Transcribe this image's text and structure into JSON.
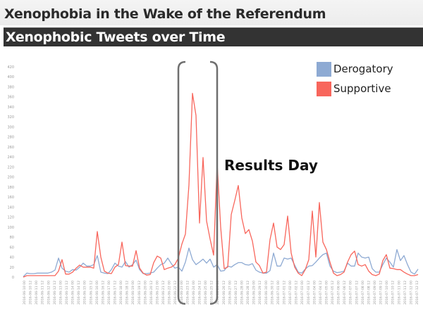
{
  "slide": {
    "title": "Xenophobia in the Wake of the Referendum",
    "subtitle": "Xenophobic Tweets over Time"
  },
  "chart_data": {
    "type": "line",
    "title": "",
    "xlabel": "",
    "ylabel": "",
    "ylim": [
      0,
      420
    ],
    "yticks": [
      0,
      20,
      40,
      60,
      80,
      100,
      120,
      140,
      160,
      180,
      200,
      220,
      240,
      260,
      280,
      300,
      320,
      340,
      360,
      380,
      400,
      420
    ],
    "grid": false,
    "legend_position": "top-right",
    "x_tick_labels": [
      "2016-06-10 00",
      "2016-06-10 12",
      "2016-06-11 00",
      "2016-06-11 12",
      "2016-06-12 00",
      "2016-06-12 12",
      "2016-06-13 00",
      "2016-06-13 12",
      "2016-06-14 00",
      "2016-06-14 12",
      "2016-06-15 00",
      "2016-06-15 12",
      "2016-06-16 00",
      "2016-06-16 12",
      "2016-06-17 00",
      "2016-06-17 12",
      "2016-06-18 00",
      "2016-06-18 12",
      "2016-06-19 00",
      "2016-06-19 12",
      "2016-06-20 00",
      "2016-06-20 12",
      "2016-06-21 00",
      "2016-06-21 12",
      "2016-06-22 00",
      "2016-06-22 12",
      "2016-06-23 00",
      "2016-06-23 12",
      "2016-06-24 00",
      "2016-06-24 12",
      "2016-06-25 00",
      "2016-06-25 12",
      "2016-06-26 00",
      "2016-06-26 12",
      "2016-06-27 00",
      "2016-06-27 12",
      "2016-06-28 00",
      "2016-06-28 12",
      "2016-06-29 00",
      "2016-06-29 12",
      "2016-06-30 00",
      "2016-06-30 12",
      "2016-07-01 00",
      "2016-07-01 12",
      "2016-07-02 00",
      "2016-07-02 12",
      "2016-07-03 00",
      "2016-07-03 12",
      "2016-07-04 00",
      "2016-07-04 12",
      "2016-07-05 00",
      "2016-07-05 12",
      "2016-07-06 00",
      "2016-07-06 12",
      "2016-07-07 00",
      "2016-07-07 12",
      "2016-07-08 00",
      "2016-07-08 12",
      "2016-07-09 00",
      "2016-07-09 12",
      "2016-07-10 00",
      "2016-07-10 12",
      "2016-07-11 00",
      "2016-07-11 12",
      "2016-07-12 00",
      "2016-07-12 12"
    ],
    "series": [
      {
        "name": "Derogatory",
        "color": "#8eaad3",
        "values": [
          1,
          8,
          7,
          7,
          8,
          8,
          8,
          8,
          10,
          14,
          38,
          18,
          12,
          10,
          15,
          14,
          20,
          28,
          22,
          22,
          25,
          43,
          10,
          8,
          7,
          15,
          28,
          22,
          20,
          31,
          20,
          25,
          34,
          15,
          7,
          7,
          8,
          10,
          18,
          25,
          28,
          38,
          27,
          18,
          20,
          12,
          30,
          58,
          35,
          25,
          30,
          36,
          28,
          36,
          20,
          25,
          12,
          13,
          22,
          20,
          25,
          29,
          29,
          25,
          24,
          27,
          14,
          10,
          8,
          8,
          13,
          48,
          22,
          22,
          38,
          36,
          38,
          24,
          10,
          8,
          16,
          22,
          23,
          30,
          38,
          45,
          48,
          22,
          12,
          9,
          10,
          12,
          28,
          22,
          22,
          48,
          40,
          38,
          40,
          17,
          10,
          10,
          25,
          38,
          30,
          20,
          55,
          33,
          43,
          25,
          10,
          6,
          16
        ]
      },
      {
        "name": "Supportive",
        "color": "#f8665c",
        "values": [
          0,
          3,
          3,
          3,
          3,
          3,
          3,
          3,
          3,
          3,
          12,
          35,
          6,
          6,
          10,
          18,
          24,
          20,
          20,
          20,
          18,
          91,
          40,
          12,
          8,
          7,
          20,
          25,
          70,
          23,
          22,
          22,
          53,
          18,
          8,
          4,
          5,
          29,
          42,
          38,
          15,
          18,
          20,
          25,
          38,
          66,
          86,
          184,
          367,
          323,
          108,
          239,
          112,
          76,
          44,
          228,
          100,
          17,
          20,
          125,
          153,
          183,
          118,
          87,
          95,
          72,
          30,
          23,
          8,
          10,
          75,
          108,
          60,
          55,
          65,
          122,
          48,
          20,
          8,
          3,
          15,
          35,
          132,
          40,
          149,
          70,
          55,
          30,
          8,
          3,
          5,
          10,
          30,
          45,
          52,
          25,
          22,
          25,
          12,
          5,
          3,
          6,
          33,
          45,
          18,
          17,
          15,
          15,
          10,
          6,
          3,
          3,
          5
        ]
      }
    ],
    "annotations": [
      {
        "text": "Results Day",
        "highlight": "bracket around the peak period"
      }
    ]
  }
}
